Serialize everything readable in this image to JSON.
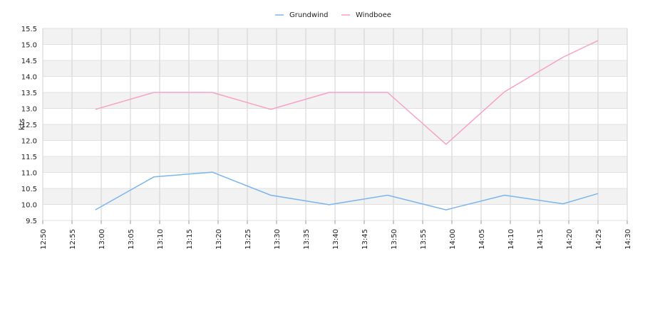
{
  "chart_data": {
    "type": "line",
    "title": "",
    "xlabel": "",
    "ylabel": "kts",
    "legend_position": "top-center",
    "grid": true,
    "x_ticks": [
      "12:50",
      "12:55",
      "13:00",
      "13:05",
      "13:10",
      "13:15",
      "13:20",
      "13:25",
      "13:30",
      "13:35",
      "13:40",
      "13:45",
      "13:50",
      "13:55",
      "14:00",
      "14:05",
      "14:10",
      "14:15",
      "14:20",
      "14:25",
      "14:30"
    ],
    "x_range": [
      "12:50",
      "14:30"
    ],
    "y_ticks": [
      "9.5",
      "10.0",
      "10.5",
      "11.0",
      "11.5",
      "12.0",
      "12.5",
      "13.0",
      "13.5",
      "14.0",
      "14.5",
      "15.0",
      "15.5"
    ],
    "ylim": [
      9.5,
      15.5
    ],
    "series": [
      {
        "name": "Grundwind",
        "color": "#7cb5ec",
        "x": [
          "12:59",
          "13:09",
          "13:19",
          "13:29",
          "13:39",
          "13:49",
          "13:59",
          "14:09",
          "14:19",
          "14:25"
        ],
        "y": [
          9.83,
          10.86,
          11.01,
          10.29,
          9.99,
          10.29,
          9.83,
          10.29,
          10.02,
          10.34
        ]
      },
      {
        "name": "Windboee",
        "color": "#f7a1c7",
        "x": [
          "12:59",
          "13:09",
          "13:19",
          "13:29",
          "13:39",
          "13:49",
          "13:59",
          "14:09",
          "14:19",
          "14:25"
        ],
        "y": [
          12.97,
          13.5,
          13.5,
          12.97,
          13.5,
          13.5,
          11.88,
          13.52,
          14.6,
          15.12
        ]
      }
    ]
  }
}
